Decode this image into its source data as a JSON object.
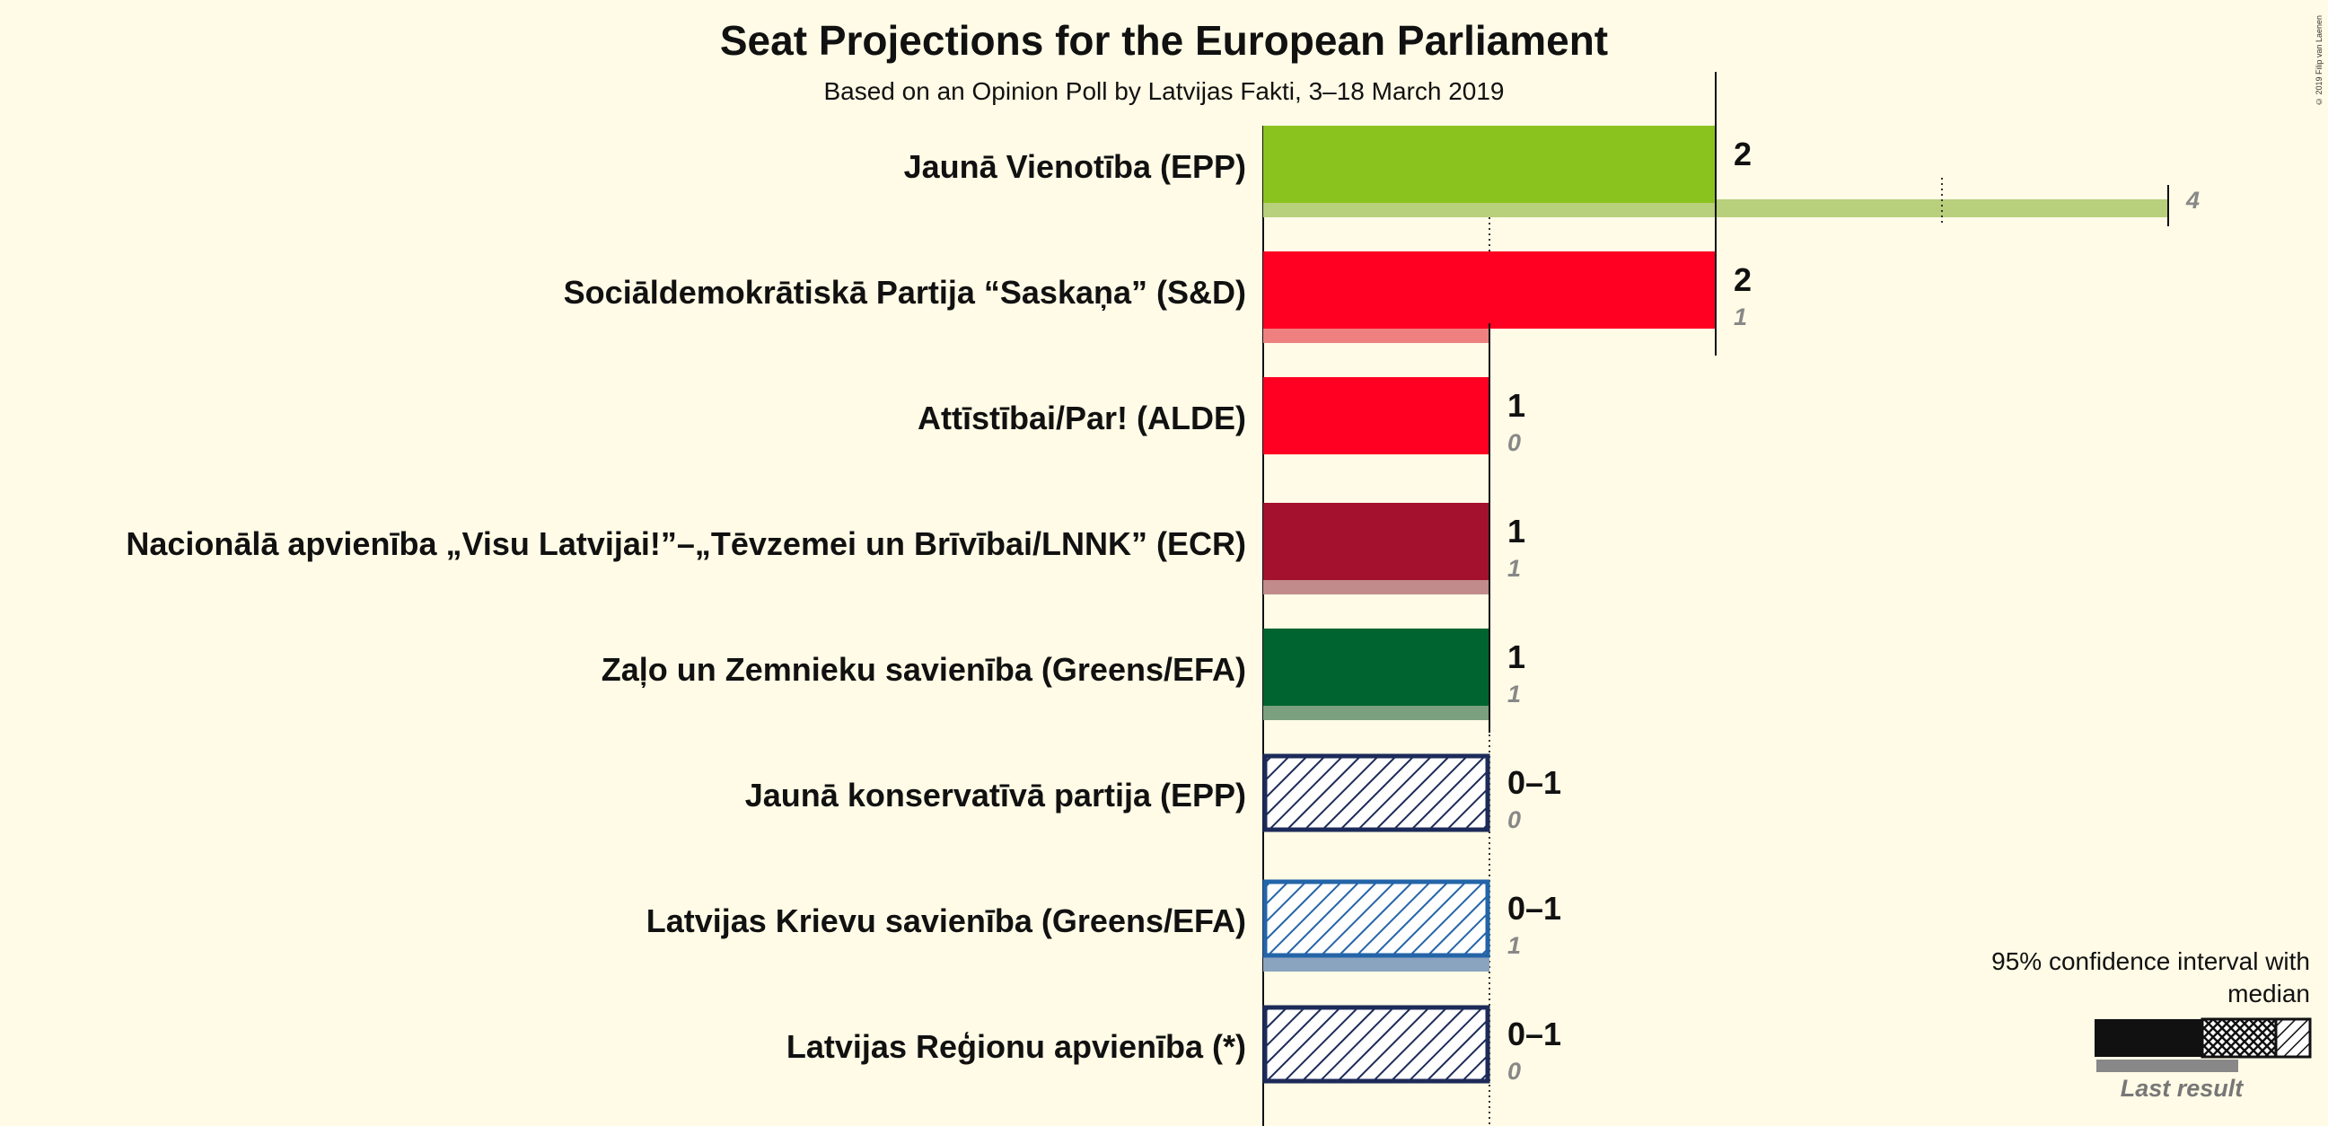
{
  "title": "Seat Projections for the European Parliament",
  "subtitle": "Based on an Opinion Poll by Latvijas Fakti, 3–18 March 2019",
  "copyright": "© 2019 Filip van Laenen",
  "legend": {
    "title": "95% confidence interval with median",
    "last_result": "Last result"
  },
  "chart_data": {
    "type": "bar",
    "title": "Seat Projections for the European Parliament",
    "subtitle": "Based on an Opinion Poll by Latvijas Fakti, 3–18 March 2019",
    "xlim": [
      0,
      4
    ],
    "gridlines": [
      1,
      3
    ],
    "categories": [
      "Jaunā Vienotība (EPP)",
      "Sociāldemokrātiskā Partija “Saskaņa” (S&D)",
      "Attīstībai/Par! (ALDE)",
      "Nacionālā apvienība „Visu Latvijai!”–„Tēvzemei un Brīvībai/LNNK” (ECR)",
      "Zaļo un Zemnieku savienība (Greens/EFA)",
      "Jaunā konservatīvā partija (EPP)",
      "Latvijas Krievu savienība (Greens/EFA)",
      "Latvijas Reģionu apvienība (*)"
    ],
    "series": [
      {
        "name": "Seats",
        "values": [
          {
            "low": 2,
            "median": 2,
            "high": 2,
            "label": "2",
            "last": 4,
            "last_label": "4",
            "color": "#8bc31e",
            "last_color": "#b8cf7c",
            "hatched": false
          },
          {
            "low": 2,
            "median": 2,
            "high": 2,
            "label": "2",
            "last": 1,
            "last_label": "1",
            "color": "#ff0022",
            "last_color": "#ef8080",
            "hatched": false
          },
          {
            "low": 1,
            "median": 1,
            "high": 1,
            "label": "1",
            "last": 0,
            "last_label": "0",
            "color": "#ff0022",
            "last_color": "#ef8080",
            "hatched": false
          },
          {
            "low": 1,
            "median": 1,
            "high": 1,
            "label": "1",
            "last": 1,
            "last_label": "1",
            "color": "#a3112f",
            "last_color": "#c18a8b",
            "hatched": false
          },
          {
            "low": 1,
            "median": 1,
            "high": 1,
            "label": "1",
            "last": 1,
            "last_label": "1",
            "color": "#006430",
            "last_color": "#7aa080",
            "hatched": false
          },
          {
            "low": 0,
            "median": 0,
            "high": 1,
            "label": "0–1",
            "last": 0,
            "last_label": "0",
            "color": "#1d2b5a",
            "last_color": "#8890a8",
            "hatched": true
          },
          {
            "low": 0,
            "median": 0,
            "high": 1,
            "label": "0–1",
            "last": 1,
            "last_label": "1",
            "color": "#2464a8",
            "last_color": "#8aa4bf",
            "hatched": true
          },
          {
            "low": 0,
            "median": 0,
            "high": 1,
            "label": "0–1",
            "last": 0,
            "last_label": "0",
            "color": "#1d2b5a",
            "last_color": "#8890a8",
            "hatched": true
          }
        ]
      }
    ]
  }
}
